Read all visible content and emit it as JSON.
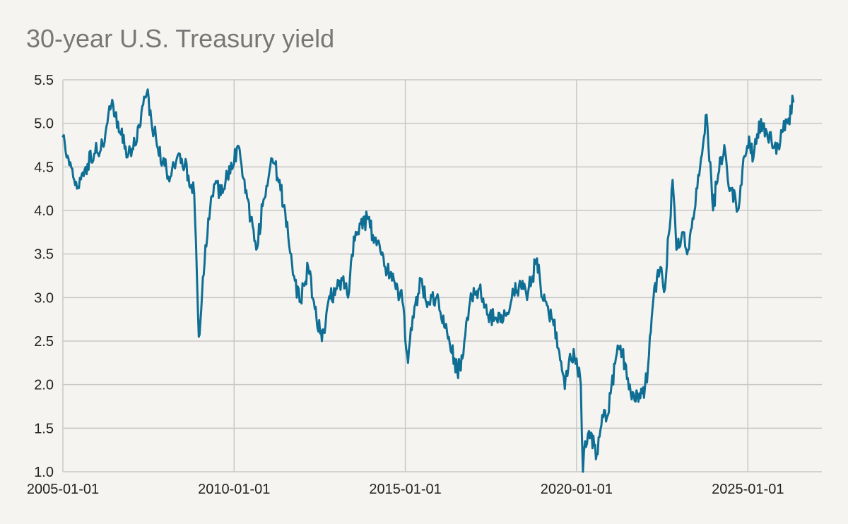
{
  "chart_data": {
    "type": "line",
    "title": "30-year U.S. Treasury yield",
    "xlabel": "",
    "ylabel": "",
    "x_axis": {
      "type": "date",
      "range": [
        "2005-01-01",
        "2027-03-01"
      ],
      "ticks": [
        "2005-01-01",
        "2010-01-01",
        "2015-01-01",
        "2020-01-01",
        "2025-01-01"
      ]
    },
    "y_axis": {
      "range": [
        1.0,
        5.5
      ],
      "ticks": [
        "1.0",
        "1.5",
        "2.0",
        "2.5",
        "3.0",
        "3.5",
        "4.0",
        "4.5",
        "5.0",
        "5.5"
      ]
    },
    "grid": true,
    "legend": "none",
    "colors": {
      "line": "#0e6e94",
      "grid": "#c8c8c8",
      "background": "#f5f4f0",
      "title": "#777777"
    },
    "series": [
      {
        "x": [
          "2005-01-01",
          "2005-03-01",
          "2005-06-01",
          "2005-09-01",
          "2005-12-01",
          "2006-03-01",
          "2006-06-01",
          "2006-09-01",
          "2006-12-01",
          "2007-03-01",
          "2007-06-15",
          "2007-09-01",
          "2007-12-01",
          "2008-03-01",
          "2008-06-01",
          "2008-09-01",
          "2008-11-01",
          "2008-12-20",
          "2009-01-15",
          "2009-03-01",
          "2009-06-01",
          "2009-09-01",
          "2009-12-01",
          "2010-03-01",
          "2010-05-01",
          "2010-08-25",
          "2010-11-01",
          "2011-02-01",
          "2011-05-01",
          "2011-08-01",
          "2011-10-01",
          "2011-12-01",
          "2012-03-01",
          "2012-05-01",
          "2012-07-25",
          "2012-10-01",
          "2013-01-01",
          "2013-03-01",
          "2013-05-01",
          "2013-07-01",
          "2013-09-01",
          "2013-12-01",
          "2014-03-01",
          "2014-06-01",
          "2014-09-01",
          "2014-12-01",
          "2015-01-30",
          "2015-03-01",
          "2015-06-15",
          "2015-09-01",
          "2015-12-01",
          "2016-03-01",
          "2016-07-08",
          "2016-09-01",
          "2016-11-30",
          "2017-03-01",
          "2017-06-01",
          "2017-09-01",
          "2017-12-01",
          "2018-03-01",
          "2018-05-15",
          "2018-08-01",
          "2018-11-05",
          "2019-01-01",
          "2019-03-01",
          "2019-06-01",
          "2019-08-28",
          "2019-11-01",
          "2020-01-01",
          "2020-02-15",
          "2020-03-09",
          "2020-04-01",
          "2020-06-01",
          "2020-08-04",
          "2020-10-01",
          "2020-12-01",
          "2021-03-15",
          "2021-06-01",
          "2021-08-01",
          "2021-11-01",
          "2021-12-20",
          "2022-02-01",
          "2022-04-01",
          "2022-06-14",
          "2022-08-01",
          "2022-10-21",
          "2022-12-01",
          "2023-02-01",
          "2023-04-05",
          "2023-06-01",
          "2023-08-01",
          "2023-10-19",
          "2023-12-27",
          "2024-02-01",
          "2024-04-25",
          "2024-06-01",
          "2024-09-15",
          "2024-11-15",
          "2025-01-14",
          "2025-03-01",
          "2025-05-21",
          "2025-07-01",
          "2025-09-01",
          "2025-11-01",
          "2026-01-01",
          "2026-03-01",
          "2026-05-01"
        ],
        "y": [
          4.85,
          4.6,
          4.25,
          4.5,
          4.65,
          4.75,
          5.2,
          4.9,
          4.65,
          4.8,
          5.35,
          4.9,
          4.55,
          4.4,
          4.65,
          4.4,
          4.2,
          2.55,
          2.85,
          3.6,
          4.3,
          4.2,
          4.55,
          4.7,
          4.2,
          3.55,
          4.05,
          4.6,
          4.35,
          3.7,
          3.25,
          2.95,
          3.35,
          2.95,
          2.5,
          2.95,
          3.1,
          3.2,
          3.0,
          3.7,
          3.85,
          3.9,
          3.6,
          3.35,
          3.2,
          2.95,
          2.25,
          2.65,
          3.2,
          2.95,
          3.0,
          2.65,
          2.15,
          2.3,
          3.05,
          3.1,
          2.8,
          2.75,
          2.8,
          3.05,
          3.15,
          3.05,
          3.45,
          3.0,
          2.9,
          2.6,
          1.95,
          2.3,
          2.3,
          2.0,
          1.0,
          1.35,
          1.45,
          1.2,
          1.65,
          1.65,
          2.45,
          2.25,
          1.9,
          1.9,
          1.85,
          2.2,
          3.0,
          3.35,
          3.1,
          4.35,
          3.55,
          3.75,
          3.55,
          3.9,
          4.4,
          5.1,
          4.0,
          4.3,
          4.75,
          4.35,
          4.0,
          4.6,
          4.85,
          4.6,
          5.05,
          4.85,
          4.9,
          4.65,
          4.9,
          5.0,
          5.25
        ]
      }
    ]
  }
}
